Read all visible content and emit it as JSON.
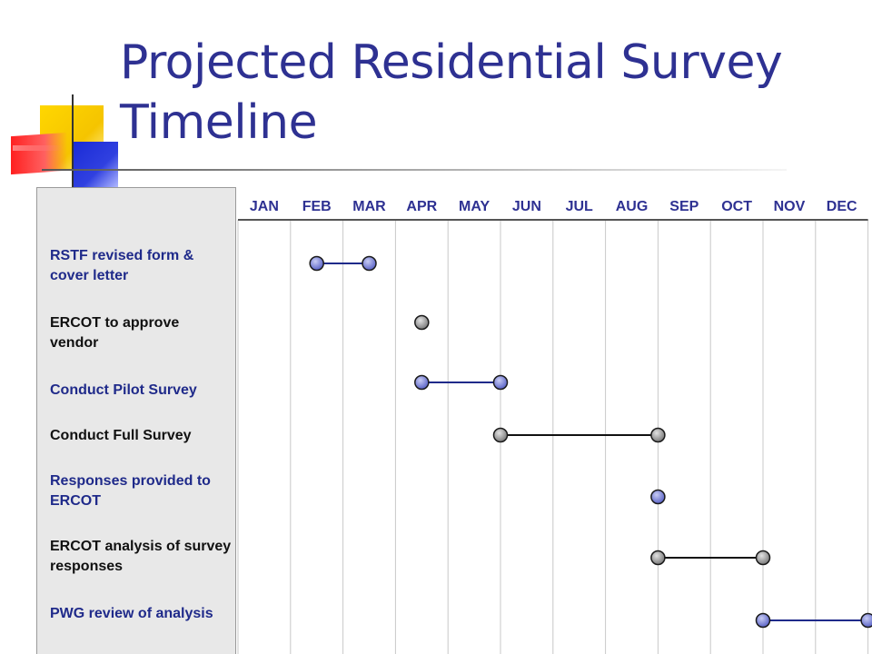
{
  "slide": {
    "title": "Projected Residential Survey Timeline"
  },
  "colors": {
    "title": "#2e3192",
    "label_blue": "#1f2a8a",
    "label_black": "#111111",
    "marker_blue": "#5a63c7",
    "marker_gray": "#7a7a7a",
    "line_blue": "#1f2a8a",
    "line_black": "#111111",
    "grid": "#c8c8c8"
  },
  "chart_data": {
    "type": "timeline",
    "months": [
      "JAN",
      "FEB",
      "MAR",
      "APR",
      "MAY",
      "JUN",
      "JUL",
      "AUG",
      "SEP",
      "OCT",
      "NOV",
      "DEC"
    ],
    "tasks": [
      {
        "label": "RSTF revised form & cover letter",
        "start": 2,
        "end": 3,
        "marker": "blue",
        "line": "blue",
        "label_color": "blue"
      },
      {
        "label": "ERCOT to approve vendor",
        "start": 4,
        "end": 4,
        "marker": "gray",
        "line": "black",
        "label_color": "black"
      },
      {
        "label": "Conduct Pilot Survey",
        "start": 4,
        "end": 5.5,
        "marker": "blue",
        "line": "blue",
        "label_color": "blue"
      },
      {
        "label": "Conduct Full Survey",
        "start": 5.5,
        "end": 8.5,
        "marker": "gray",
        "line": "black",
        "label_color": "black"
      },
      {
        "label": "Responses provided to ERCOT",
        "start": 8.5,
        "end": 8.5,
        "marker": "blue",
        "line": "blue",
        "label_color": "blue"
      },
      {
        "label": "ERCOT analysis of survey responses",
        "start": 8.5,
        "end": 10.5,
        "marker": "gray",
        "line": "black",
        "label_color": "black"
      },
      {
        "label": "PWG review of analysis",
        "start": 10.5,
        "end": 12.5,
        "marker": "blue",
        "line": "blue",
        "label_color": "blue"
      }
    ]
  }
}
